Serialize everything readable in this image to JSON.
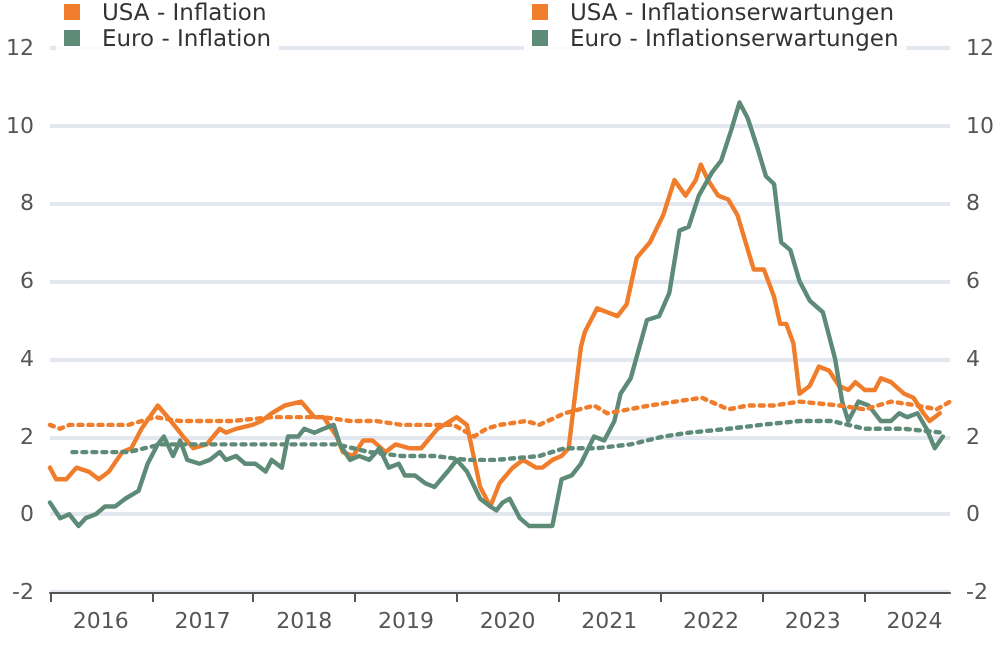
{
  "chart_data": {
    "type": "line",
    "xlim": [
      2016,
      2024.85
    ],
    "xticks": [
      {
        "value": 2016,
        "label": null
      },
      {
        "value": 2016.5,
        "label": "2016"
      },
      {
        "value": 2017,
        "label": null
      },
      {
        "value": 2017.5,
        "label": "2017"
      },
      {
        "value": 2018,
        "label": null
      },
      {
        "value": 2018.5,
        "label": "2018"
      },
      {
        "value": 2019,
        "label": null
      },
      {
        "value": 2019.5,
        "label": "2019"
      },
      {
        "value": 2020,
        "label": null
      },
      {
        "value": 2020.5,
        "label": "2020"
      },
      {
        "value": 2021,
        "label": null
      },
      {
        "value": 2021.5,
        "label": "2021"
      },
      {
        "value": 2022,
        "label": null
      },
      {
        "value": 2022.5,
        "label": "2022"
      },
      {
        "value": 2023,
        "label": null
      },
      {
        "value": 2023.5,
        "label": "2023"
      },
      {
        "value": 2024,
        "label": null
      },
      {
        "value": 2024.5,
        "label": "2024"
      }
    ],
    "ylim": [
      -2,
      12
    ],
    "yticks": [
      -2,
      0,
      2,
      4,
      6,
      8,
      10,
      12
    ],
    "y2lim": [
      -2,
      12
    ],
    "y2ticks": [
      -2,
      0,
      2,
      4,
      6,
      8,
      10,
      12
    ],
    "grid": "y",
    "legend": "top",
    "marker": "none",
    "series": [
      {
        "name": "USA - Inflation",
        "color": "#f07d2b",
        "line_style": "solid",
        "x": [
          2016.0,
          2016.06,
          2016.16,
          2016.26,
          2016.38,
          2016.48,
          2016.58,
          2016.71,
          2016.8,
          2016.9,
          2017.06,
          2017.19,
          2017.31,
          2017.41,
          2017.54,
          2017.67,
          2017.73,
          2017.83,
          2017.99,
          2018.08,
          2018.18,
          2018.31,
          2018.47,
          2018.6,
          2018.69,
          2018.82,
          2018.88,
          2018.98,
          2019.08,
          2019.17,
          2019.3,
          2019.4,
          2019.53,
          2019.65,
          2019.81,
          2020.0,
          2020.1,
          2020.23,
          2020.33,
          2020.42,
          2020.55,
          2020.65,
          2020.78,
          2020.84,
          2020.94,
          2021.03,
          2021.1,
          2021.16,
          2021.22,
          2021.26,
          2021.38,
          2021.48,
          2021.58,
          2021.67,
          2021.77,
          2021.9,
          2022.03,
          2022.14,
          2022.25,
          2022.35,
          2022.4,
          2022.47,
          2022.57,
          2022.67,
          2022.76,
          2022.92,
          2023.02,
          2023.12,
          2023.18,
          2023.24,
          2023.31,
          2023.37,
          2023.47,
          2023.56,
          2023.66,
          2023.76,
          2023.85,
          2023.92,
          2024.01,
          2024.11,
          2024.17,
          2024.27,
          2024.4,
          2024.49,
          2024.59,
          2024.65,
          2024.75
        ],
        "values": [
          1.2,
          0.9,
          0.9,
          1.2,
          1.1,
          0.9,
          1.1,
          1.6,
          1.7,
          2.2,
          2.8,
          2.4,
          2.0,
          1.7,
          1.8,
          2.2,
          2.1,
          2.2,
          2.3,
          2.4,
          2.6,
          2.8,
          2.9,
          2.5,
          2.5,
          2.0,
          1.6,
          1.5,
          1.9,
          1.9,
          1.6,
          1.8,
          1.7,
          1.7,
          2.2,
          2.5,
          2.3,
          0.7,
          0.2,
          0.8,
          1.2,
          1.4,
          1.2,
          1.2,
          1.4,
          1.5,
          1.7,
          3.0,
          4.3,
          4.7,
          5.3,
          5.2,
          5.1,
          5.4,
          6.6,
          7.0,
          7.7,
          8.6,
          8.2,
          8.6,
          9.0,
          8.6,
          8.2,
          8.1,
          7.7,
          6.3,
          6.3,
          5.6,
          4.9,
          4.9,
          4.4,
          3.1,
          3.3,
          3.8,
          3.7,
          3.3,
          3.2,
          3.4,
          3.2,
          3.2,
          3.5,
          3.4,
          3.1,
          3.0,
          2.6,
          2.4,
          2.6
        ]
      },
      {
        "name": "Euro - Inflation",
        "color": "#5e8a78",
        "line_style": "solid",
        "x": [
          2016.0,
          2016.1,
          2016.19,
          2016.28,
          2016.35,
          2016.45,
          2016.54,
          2016.64,
          2016.74,
          2016.87,
          2016.96,
          2017.06,
          2017.12,
          2017.21,
          2017.28,
          2017.35,
          2017.47,
          2017.57,
          2017.67,
          2017.73,
          2017.83,
          2017.92,
          2018.02,
          2018.12,
          2018.18,
          2018.28,
          2018.34,
          2018.44,
          2018.5,
          2018.6,
          2018.69,
          2018.79,
          2018.85,
          2018.95,
          2019.04,
          2019.14,
          2019.24,
          2019.33,
          2019.43,
          2019.49,
          2019.59,
          2019.69,
          2019.78,
          2019.91,
          2020.0,
          2020.1,
          2020.23,
          2020.33,
          2020.39,
          2020.45,
          2020.52,
          2020.62,
          2020.71,
          2020.94,
          2021.03,
          2021.13,
          2021.22,
          2021.35,
          2021.45,
          2021.55,
          2021.61,
          2021.71,
          2021.87,
          2021.99,
          2022.09,
          2022.19,
          2022.28,
          2022.38,
          2022.51,
          2022.6,
          2022.7,
          2022.78,
          2022.86,
          2022.96,
          2023.04,
          2023.12,
          2023.19,
          2023.28,
          2023.37,
          2023.47,
          2023.6,
          2023.66,
          2023.72,
          2023.79,
          2023.85,
          2023.95,
          2024.05,
          2024.17,
          2024.27,
          2024.35,
          2024.43,
          2024.53,
          2024.62,
          2024.7,
          2024.78
        ],
        "values": [
          0.3,
          -0.1,
          0.0,
          -0.3,
          -0.1,
          0.0,
          0.2,
          0.2,
          0.4,
          0.6,
          1.3,
          1.8,
          2.0,
          1.5,
          1.9,
          1.4,
          1.3,
          1.4,
          1.6,
          1.4,
          1.5,
          1.3,
          1.3,
          1.1,
          1.4,
          1.2,
          2.0,
          2.0,
          2.2,
          2.1,
          2.2,
          2.3,
          1.8,
          1.4,
          1.5,
          1.4,
          1.7,
          1.2,
          1.3,
          1.0,
          1.0,
          0.8,
          0.7,
          1.1,
          1.4,
          1.1,
          0.4,
          0.2,
          0.1,
          0.3,
          0.4,
          -0.1,
          -0.3,
          -0.3,
          0.9,
          1.0,
          1.3,
          2.0,
          1.9,
          2.4,
          3.1,
          3.5,
          5.0,
          5.1,
          5.7,
          7.3,
          7.4,
          8.2,
          8.8,
          9.1,
          9.9,
          10.6,
          10.2,
          9.4,
          8.7,
          8.5,
          7.0,
          6.8,
          6.0,
          5.5,
          5.2,
          4.6,
          4.0,
          2.9,
          2.4,
          2.9,
          2.8,
          2.4,
          2.4,
          2.6,
          2.5,
          2.6,
          2.2,
          1.7,
          2.0
        ]
      },
      {
        "name": "USA - Inflationserwartungen",
        "color": "#f07d2b",
        "line_style": "dotted",
        "x": [
          2016.0,
          2016.1,
          2016.19,
          2016.45,
          2016.77,
          2017.03,
          2017.28,
          2017.54,
          2017.79,
          2018.18,
          2018.44,
          2018.69,
          2018.95,
          2019.21,
          2019.46,
          2019.72,
          2019.97,
          2020.17,
          2020.29,
          2020.42,
          2020.68,
          2020.81,
          2021.06,
          2021.35,
          2021.48,
          2021.9,
          2022.15,
          2022.41,
          2022.67,
          2022.86,
          2023.12,
          2023.37,
          2023.76,
          2024.01,
          2024.27,
          2024.53,
          2024.72,
          2024.85
        ],
        "values": [
          2.3,
          2.2,
          2.3,
          2.3,
          2.3,
          2.5,
          2.4,
          2.4,
          2.4,
          2.5,
          2.5,
          2.5,
          2.4,
          2.4,
          2.3,
          2.3,
          2.3,
          2.0,
          2.2,
          2.3,
          2.4,
          2.3,
          2.6,
          2.8,
          2.6,
          2.8,
          2.9,
          3.0,
          2.7,
          2.8,
          2.8,
          2.9,
          2.8,
          2.7,
          2.9,
          2.8,
          2.7,
          2.9
        ]
      },
      {
        "name": "Euro - Inflationserwartungen",
        "color": "#5e8a78",
        "line_style": "dotted",
        "x": [
          2016.22,
          2016.58,
          2016.77,
          2017.09,
          2017.54,
          2017.92,
          2018.5,
          2018.82,
          2019.14,
          2019.46,
          2019.78,
          2020.1,
          2020.39,
          2020.81,
          2021.06,
          2021.38,
          2021.71,
          2022.03,
          2022.28,
          2022.67,
          2022.99,
          2023.37,
          2023.69,
          2024.01,
          2024.4,
          2024.78
        ],
        "values": [
          1.6,
          1.6,
          1.6,
          1.8,
          1.8,
          1.8,
          1.8,
          1.8,
          1.6,
          1.5,
          1.5,
          1.4,
          1.4,
          1.5,
          1.7,
          1.7,
          1.8,
          2.0,
          2.1,
          2.2,
          2.3,
          2.4,
          2.4,
          2.2,
          2.2,
          2.1
        ]
      }
    ]
  }
}
